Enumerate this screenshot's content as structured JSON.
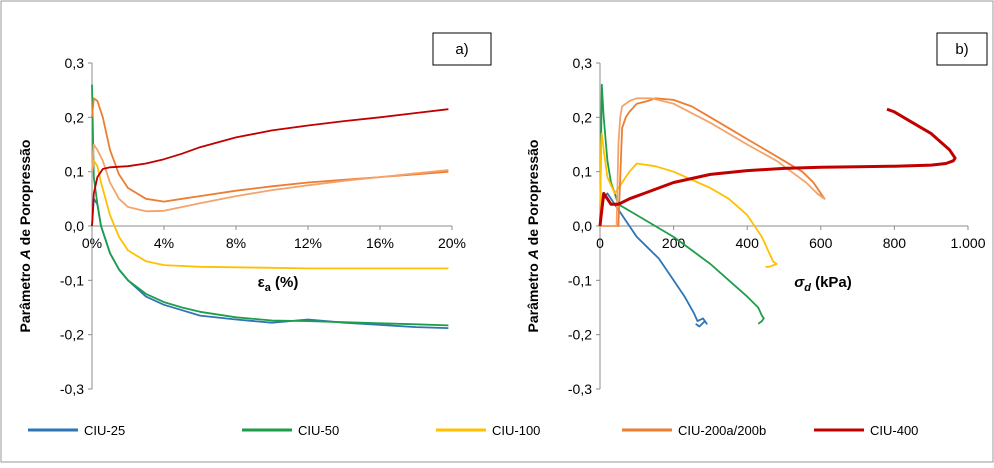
{
  "chart_data": [
    {
      "panel": "a)",
      "type": "line",
      "xlabel": "εa (%)",
      "ylabel": "Parâmetro A de Poropressão",
      "xlim": [
        0,
        20
      ],
      "ylim": [
        -0.3,
        0.3
      ],
      "xticks": [
        "0%",
        "4%",
        "8%",
        "12%",
        "16%",
        "20%"
      ],
      "yticks": [
        "-0,3",
        "-0,2",
        "-0,1",
        "0,0",
        "0,1",
        "0,2",
        "0,3"
      ],
      "grid": false,
      "series": [
        {
          "name": "CIU-25",
          "color": "#2E75B6",
          "x": [
            0,
            0.1,
            0.3,
            0.5,
            1,
            1.5,
            2,
            3,
            4,
            5,
            6,
            8,
            10,
            12,
            14,
            16,
            18,
            19.8
          ],
          "y": [
            0.0,
            0.05,
            0.04,
            0.0,
            -0.05,
            -0.08,
            -0.1,
            -0.13,
            -0.145,
            -0.155,
            -0.165,
            -0.172,
            -0.178,
            -0.172,
            -0.178,
            -0.182,
            -0.186,
            -0.188
          ]
        },
        {
          "name": "CIU-50",
          "color": "#1E9E4A",
          "x": [
            0,
            0.1,
            0.3,
            0.5,
            1,
            1.5,
            2,
            3,
            4,
            5,
            6,
            8,
            10,
            12,
            14,
            16,
            18,
            19.8
          ],
          "y": [
            0.26,
            0.09,
            0.04,
            0.0,
            -0.05,
            -0.08,
            -0.1,
            -0.125,
            -0.14,
            -0.15,
            -0.158,
            -0.168,
            -0.174,
            -0.175,
            -0.177,
            -0.179,
            -0.181,
            -0.183
          ]
        },
        {
          "name": "CIU-100",
          "color": "#FFC000",
          "x": [
            0,
            0.1,
            0.3,
            0.5,
            1,
            1.5,
            2,
            3,
            4,
            6,
            8,
            10,
            12,
            14,
            16,
            18,
            19.8
          ],
          "y": [
            0.1,
            0.12,
            0.11,
            0.08,
            0.02,
            -0.02,
            -0.045,
            -0.065,
            -0.072,
            -0.075,
            -0.076,
            -0.077,
            -0.078,
            -0.078,
            -0.078,
            -0.078,
            -0.078
          ]
        },
        {
          "name": "CIU-200a/200b",
          "color": "#ED7D31",
          "x": [
            0,
            0.1,
            0.3,
            0.6,
            1,
            1.5,
            2,
            3,
            4,
            5,
            6,
            8,
            10,
            12,
            14,
            16,
            18,
            19.8
          ],
          "y": [
            0.2,
            0.235,
            0.23,
            0.2,
            0.14,
            0.095,
            0.07,
            0.05,
            0.045,
            0.05,
            0.055,
            0.065,
            0.073,
            0.08,
            0.085,
            0.09,
            0.095,
            0.1
          ]
        },
        {
          "name": "CIU-200a/200b",
          "color": "#F4A46B",
          "x": [
            0,
            0.1,
            0.3,
            0.6,
            1,
            1.5,
            2,
            3,
            4,
            5,
            6,
            8,
            10,
            12,
            14,
            16,
            18,
            19.8
          ],
          "y": [
            0.1,
            0.15,
            0.14,
            0.12,
            0.08,
            0.05,
            0.035,
            0.027,
            0.028,
            0.035,
            0.042,
            0.055,
            0.066,
            0.075,
            0.083,
            0.09,
            0.097,
            0.103
          ]
        },
        {
          "name": "CIU-400",
          "color": "#C00000",
          "x": [
            0,
            0.1,
            0.3,
            0.6,
            1,
            2,
            3,
            4,
            5,
            6,
            8,
            10,
            12,
            14,
            16,
            18,
            19.8
          ],
          "y": [
            0.0,
            0.06,
            0.09,
            0.105,
            0.108,
            0.11,
            0.115,
            0.123,
            0.133,
            0.145,
            0.163,
            0.176,
            0.185,
            0.193,
            0.2,
            0.208,
            0.215
          ]
        }
      ]
    },
    {
      "panel": "b)",
      "type": "line",
      "xlabel": "σd (kPa)",
      "ylabel": "Parâmetro A de Poropressão",
      "xlim": [
        0,
        1000
      ],
      "ylim": [
        -0.3,
        0.3
      ],
      "xticks": [
        "0",
        "200",
        "400",
        "600",
        "800",
        "1.000"
      ],
      "yticks": [
        "-0,3",
        "-0,2",
        "-0,1",
        "0,0",
        "0,1",
        "0,2",
        "0,3"
      ],
      "grid": false,
      "series": [
        {
          "name": "CIU-25",
          "color": "#2E75B6",
          "x": [
            0,
            10,
            20,
            40,
            60,
            80,
            100,
            130,
            160,
            200,
            230,
            255,
            265,
            280,
            290,
            285,
            270,
            260
          ],
          "y": [
            0.0,
            0.05,
            0.06,
            0.04,
            0.02,
            0.0,
            -0.02,
            -0.04,
            -0.06,
            -0.1,
            -0.13,
            -0.16,
            -0.175,
            -0.17,
            -0.18,
            -0.175,
            -0.185,
            -0.18
          ]
        },
        {
          "name": "CIU-50",
          "color": "#1E9E4A",
          "x": [
            0,
            5,
            10,
            20,
            30,
            50,
            100,
            150,
            200,
            250,
            300,
            350,
            400,
            430,
            440,
            445,
            440,
            430
          ],
          "y": [
            0.0,
            0.26,
            0.2,
            0.12,
            0.08,
            0.04,
            0.02,
            0.0,
            -0.02,
            -0.045,
            -0.07,
            -0.1,
            -0.13,
            -0.15,
            -0.165,
            -0.17,
            -0.175,
            -0.18
          ]
        },
        {
          "name": "CIU-100",
          "color": "#FFC000",
          "x": [
            0,
            3,
            5,
            10,
            20,
            40,
            60,
            80,
            100,
            150,
            200,
            250,
            300,
            350,
            400,
            440,
            460,
            470,
            480,
            460,
            450
          ],
          "y": [
            0.0,
            0.15,
            0.17,
            0.14,
            0.09,
            0.06,
            0.08,
            0.1,
            0.115,
            0.11,
            0.1,
            0.085,
            0.07,
            0.05,
            0.02,
            -0.02,
            -0.05,
            -0.065,
            -0.07,
            -0.075,
            -0.075
          ]
        },
        {
          "name": "CIU-200a/200b",
          "color": "#ED7D31",
          "x": [
            0,
            30,
            50,
            60,
            70,
            80,
            100,
            130,
            150,
            200,
            250,
            300,
            350,
            400,
            450,
            500,
            550,
            580,
            600,
            610,
            590
          ],
          "y": [
            0.0,
            0.0,
            0.0,
            0.18,
            0.2,
            0.21,
            0.225,
            0.23,
            0.235,
            0.232,
            0.22,
            0.2,
            0.18,
            0.16,
            0.14,
            0.12,
            0.1,
            0.08,
            0.06,
            0.05,
            0.06
          ]
        },
        {
          "name": "CIU-200a/200b",
          "color": "#F4A46B",
          "x": [
            0,
            20,
            40,
            45,
            50,
            55,
            60,
            80,
            100,
            140,
            200,
            300,
            400,
            480,
            520,
            560,
            590,
            610,
            600
          ],
          "y": [
            0.0,
            0.0,
            0.0,
            0.0,
            0.15,
            0.2,
            0.22,
            0.23,
            0.235,
            0.235,
            0.225,
            0.19,
            0.15,
            0.12,
            0.1,
            0.08,
            0.06,
            0.05,
            0.055
          ]
        },
        {
          "name": "CIU-400",
          "color": "#C00000",
          "x": [
            0,
            5,
            10,
            20,
            30,
            50,
            80,
            120,
            200,
            300,
            400,
            500,
            600,
            700,
            800,
            900,
            940,
            960,
            965,
            950,
            900,
            850,
            800,
            780
          ],
          "y": [
            0.0,
            0.03,
            0.06,
            0.05,
            0.04,
            0.04,
            0.05,
            0.06,
            0.08,
            0.095,
            0.102,
            0.106,
            0.108,
            0.109,
            0.11,
            0.112,
            0.115,
            0.12,
            0.125,
            0.14,
            0.17,
            0.19,
            0.21,
            0.215
          ]
        }
      ]
    }
  ],
  "legend": [
    {
      "name": "CIU-25",
      "color": "#2E75B6"
    },
    {
      "name": "CIU-50",
      "color": "#1E9E4A"
    },
    {
      "name": "CIU-100",
      "color": "#FFC000"
    },
    {
      "name": "CIU-200a/200b",
      "color": "#ED7D31"
    },
    {
      "name": "CIU-400",
      "color": "#C00000"
    }
  ]
}
